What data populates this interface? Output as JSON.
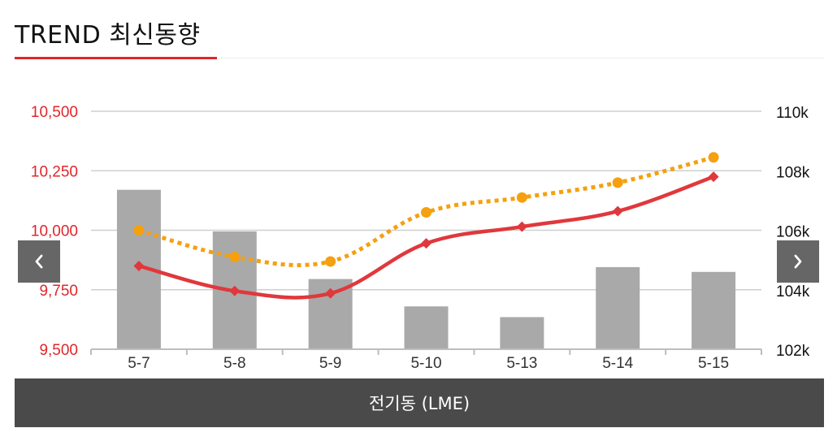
{
  "header": {
    "title": "TREND 최신동향"
  },
  "caption": {
    "label": "전기동 (LME)"
  },
  "nav": {
    "prev_icon": "chevron-left-icon",
    "next_icon": "chevron-right-icon"
  },
  "colors": {
    "accent": "#e0262b",
    "line_primary": "#e0383c",
    "line_secondary": "#f5a00f",
    "bar": "#a9a9a9",
    "caption_bg": "#4a4a4a"
  },
  "chart_data": {
    "type": "bar",
    "categories": [
      "5-7",
      "5-8",
      "5-9",
      "5-10",
      "5-13",
      "5-14",
      "5-15"
    ],
    "left_axis": {
      "ticks": [
        "9,500",
        "9,750",
        "10,000",
        "10,250",
        "10,500"
      ],
      "ylim": [
        9500,
        10500
      ]
    },
    "right_axis": {
      "ticks": [
        "102k",
        "104k",
        "106k",
        "108k",
        "110k"
      ],
      "ylim": [
        102000,
        110000
      ]
    },
    "grid": true,
    "series": [
      {
        "type": "bar",
        "axis": "left",
        "values": [
          10170,
          9995,
          9795,
          9680,
          9635,
          9845,
          9825
        ]
      },
      {
        "type": "line",
        "axis": "left",
        "marker": "diamond",
        "style": "solid",
        "values": [
          9850,
          9745,
          9735,
          9945,
          10015,
          10080,
          10225
        ]
      },
      {
        "type": "line",
        "axis": "right",
        "marker": "circle",
        "style": "dotted",
        "values": [
          106000,
          105100,
          104950,
          106600,
          107100,
          107600,
          108450
        ]
      }
    ]
  }
}
